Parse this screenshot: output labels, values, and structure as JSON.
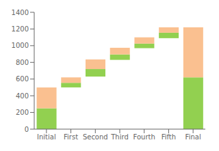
{
  "chart_data": {
    "type": "bar",
    "stacked": true,
    "categories": [
      "Initial",
      "First",
      "Second",
      "Third",
      "Fourth",
      "Fifth",
      "Final"
    ],
    "series": [
      {
        "color": "#92d050",
        "bottom": [
          0,
          500,
          630,
          830,
          970,
          1090,
          0
        ],
        "values": [
          250,
          55,
          90,
          65,
          55,
          65,
          620
        ]
      },
      {
        "color": "#fac090",
        "values": [
          250,
          65,
          115,
          80,
          75,
          65,
          600
        ]
      }
    ],
    "ylim": [
      0,
      1400
    ],
    "yticks": [
      0,
      200,
      400,
      600,
      800,
      1000,
      1200,
      1400
    ],
    "grid": false
  }
}
